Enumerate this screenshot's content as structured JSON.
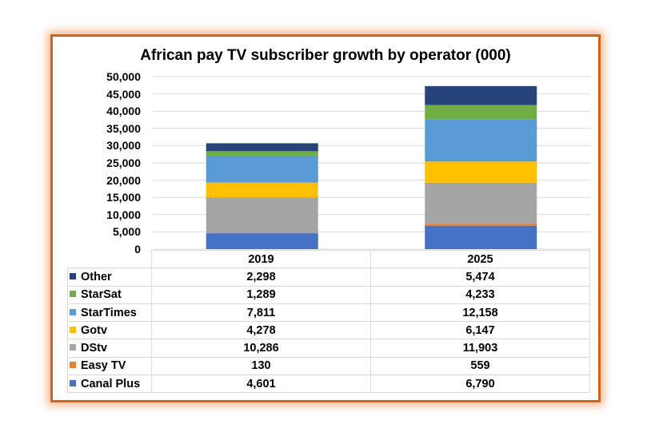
{
  "chart_data": {
    "type": "bar",
    "stacked": true,
    "title": "African pay TV subscriber growth by operator (000)",
    "categories": [
      "2019",
      "2025"
    ],
    "ylim": [
      0,
      50000
    ],
    "yticks": [
      "0",
      "5,000",
      "10,000",
      "15,000",
      "20,000",
      "25,000",
      "30,000",
      "35,000",
      "40,000",
      "45,000",
      "50,000"
    ],
    "grid": true,
    "series": [
      {
        "name": "Canal Plus",
        "color": "#4472c4",
        "values": [
          4601,
          6790
        ],
        "labels": [
          "4,601",
          "6,790"
        ]
      },
      {
        "name": "Easy TV",
        "color": "#ed7d31",
        "values": [
          130,
          559
        ],
        "labels": [
          "130",
          "559"
        ]
      },
      {
        "name": "DStv",
        "color": "#a5a5a5",
        "values": [
          10286,
          11903
        ],
        "labels": [
          "10,286",
          "11,903"
        ]
      },
      {
        "name": "Gotv",
        "color": "#ffc000",
        "values": [
          4278,
          6147
        ],
        "labels": [
          "4,278",
          "6,147"
        ]
      },
      {
        "name": "StarTimes",
        "color": "#5b9bd5",
        "values": [
          7811,
          12158
        ],
        "labels": [
          "7,811",
          "12,158"
        ]
      },
      {
        "name": "StarSat",
        "color": "#70ad47",
        "values": [
          1289,
          4233
        ],
        "labels": [
          "1,289",
          "4,233"
        ]
      },
      {
        "name": "Other",
        "color": "#264478",
        "values": [
          2298,
          5474
        ],
        "labels": [
          "2,298",
          "5,474"
        ]
      }
    ]
  }
}
